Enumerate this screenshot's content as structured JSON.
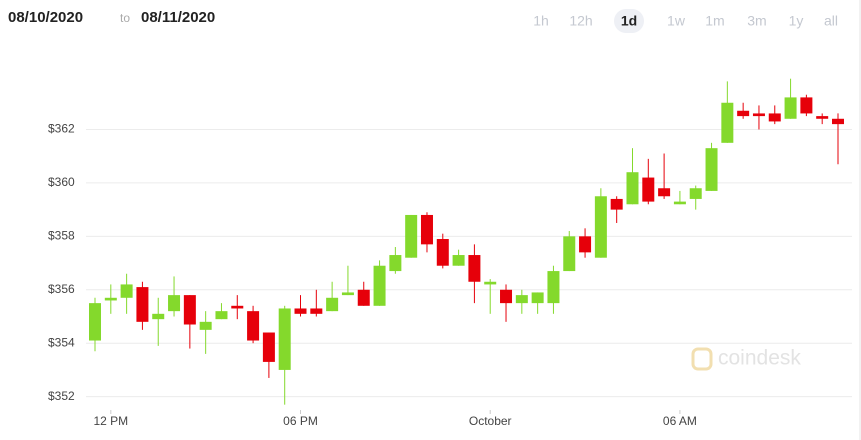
{
  "header": {
    "from": "08/10/2020",
    "to_word": "to",
    "to": "08/11/2020",
    "ranges": [
      "1h",
      "12h",
      "1d",
      "1w",
      "1m",
      "3m",
      "1y",
      "all"
    ],
    "selected_range_index": 2
  },
  "chart_data": {
    "type": "candlestick",
    "watermark": "coindesk",
    "categories": [
      null,
      "12 PM",
      null,
      null,
      null,
      null,
      null,
      null,
      null,
      null,
      null,
      null,
      null,
      "06 PM",
      null,
      null,
      null,
      null,
      null,
      null,
      null,
      null,
      null,
      null,
      null,
      "October",
      null,
      null,
      null,
      null,
      null,
      null,
      null,
      null,
      null,
      null,
      null,
      "06 AM",
      null,
      null,
      null,
      null,
      null,
      null,
      null,
      null,
      null,
      null
    ],
    "open": [
      354.1,
      355.6,
      355.7,
      356.1,
      354.9,
      355.2,
      355.8,
      354.5,
      354.9,
      355.4,
      355.2,
      354.4,
      353.0,
      355.3,
      355.3,
      355.2,
      355.8,
      356.0,
      355.4,
      356.7,
      357.2,
      358.8,
      357.9,
      356.9,
      357.3,
      356.2,
      356.0,
      355.5,
      355.5,
      355.5,
      356.7,
      358.0,
      357.2,
      359.4,
      359.2,
      360.2,
      359.8,
      359.2,
      359.4,
      359.7,
      361.5,
      362.7,
      362.6,
      362.6,
      362.4,
      363.2,
      362.5,
      362.4
    ],
    "high": [
      355.7,
      356.2,
      356.6,
      356.3,
      355.7,
      356.5,
      355.8,
      355.2,
      355.5,
      355.8,
      355.4,
      354.4,
      355.4,
      355.8,
      356.0,
      356.3,
      356.9,
      356.3,
      357.1,
      357.6,
      358.8,
      358.9,
      358.1,
      357.5,
      357.7,
      356.4,
      356.2,
      356.0,
      355.9,
      356.9,
      358.2,
      358.3,
      359.8,
      359.5,
      361.3,
      360.9,
      361.1,
      359.7,
      359.9,
      361.5,
      363.8,
      363.0,
      362.9,
      362.9,
      363.9,
      363.3,
      362.6,
      362.6
    ],
    "low": [
      353.7,
      355.1,
      355.1,
      354.5,
      353.9,
      355.0,
      353.8,
      353.6,
      354.9,
      354.9,
      354.0,
      352.7,
      351.7,
      355.0,
      355.0,
      355.2,
      355.8,
      355.4,
      355.4,
      356.6,
      357.2,
      357.4,
      356.8,
      356.9,
      355.5,
      355.1,
      354.8,
      355.1,
      355.1,
      355.1,
      356.7,
      357.2,
      357.2,
      358.5,
      359.2,
      359.2,
      359.4,
      359.2,
      359.0,
      359.7,
      361.5,
      362.4,
      362.0,
      362.2,
      362.4,
      362.5,
      362.2,
      360.7
    ],
    "close": [
      355.5,
      355.7,
      356.2,
      354.8,
      355.1,
      355.8,
      354.7,
      354.8,
      355.2,
      355.3,
      354.1,
      353.3,
      355.3,
      355.1,
      355.1,
      355.7,
      355.9,
      355.4,
      356.9,
      357.3,
      358.8,
      357.7,
      356.9,
      357.3,
      356.3,
      356.3,
      355.5,
      355.8,
      355.9,
      356.7,
      358.0,
      357.4,
      359.5,
      359.0,
      360.4,
      359.3,
      359.5,
      359.3,
      359.8,
      361.3,
      363.0,
      362.5,
      362.5,
      362.3,
      363.2,
      362.6,
      362.4,
      362.2
    ],
    "up_color": "#84d92c",
    "down_color": "#e6000a",
    "ylim": [
      351.5,
      364.6
    ],
    "yticks": [
      {
        "value": 352,
        "label": "$352"
      },
      {
        "value": 354,
        "label": "$354"
      },
      {
        "value": 356,
        "label": "$356"
      },
      {
        "value": 358,
        "label": "$358"
      },
      {
        "value": 360,
        "label": "$360"
      },
      {
        "value": 362,
        "label": "$362"
      }
    ],
    "grid": true
  }
}
